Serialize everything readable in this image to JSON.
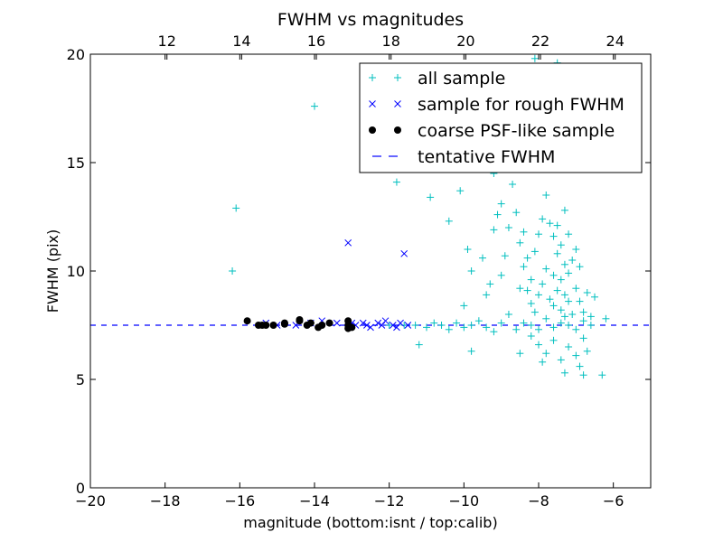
{
  "chart_data": {
    "type": "scatter",
    "title": "FWHM vs magnitudes",
    "xlabel": "magnitude (bottom:isnt / top:calib)",
    "ylabel": "FWHM (pix)",
    "xlim": [
      -20,
      -5
    ],
    "ylim": [
      0,
      20
    ],
    "x_ticks": [
      "−20",
      "−18",
      "−16",
      "−14",
      "−12",
      "−10",
      "−8",
      "−6"
    ],
    "x_tick_values": [
      -20,
      -18,
      -16,
      -14,
      -12,
      -10,
      -8,
      -6
    ],
    "y_ticks": [
      "0",
      "5",
      "10",
      "15",
      "20"
    ],
    "y_tick_values": [
      0,
      5,
      10,
      15,
      20
    ],
    "top_axis": {
      "offset": 29.95,
      "ticks": [
        "12",
        "14",
        "16",
        "18",
        "20",
        "22",
        "24"
      ],
      "tick_values": [
        12,
        14,
        16,
        18,
        20,
        22,
        24
      ]
    },
    "legend_position": "upper right",
    "hline": {
      "name": "tentative FWHM",
      "y": 7.5,
      "color": "#0000ff",
      "style": "dashed"
    },
    "series": [
      {
        "name": "all sample",
        "marker": "plus",
        "color": "#00bfbf",
        "points": [
          [
            -16.2,
            10.0
          ],
          [
            -16.1,
            12.9
          ],
          [
            -14.0,
            17.6
          ],
          [
            -11.8,
            14.1
          ],
          [
            -11.5,
            15.6
          ],
          [
            -10.9,
            13.4
          ],
          [
            -10.4,
            12.3
          ],
          [
            -10.1,
            13.7
          ],
          [
            -9.9,
            11.0
          ],
          [
            -9.8,
            10.0
          ],
          [
            -10.0,
            8.4
          ],
          [
            -11.2,
            6.6
          ],
          [
            -9.8,
            6.3
          ],
          [
            -12.0,
            7.5
          ],
          [
            -11.6,
            7.5
          ],
          [
            -11.3,
            7.5
          ],
          [
            -11.0,
            7.4
          ],
          [
            -10.8,
            7.6
          ],
          [
            -10.6,
            7.5
          ],
          [
            -10.4,
            7.3
          ],
          [
            -10.2,
            7.6
          ],
          [
            -10.0,
            7.4
          ],
          [
            -9.8,
            7.5
          ],
          [
            -9.6,
            7.7
          ],
          [
            -9.4,
            7.4
          ],
          [
            -9.2,
            7.2
          ],
          [
            -9.0,
            7.6
          ],
          [
            -8.8,
            8.0
          ],
          [
            -8.6,
            7.3
          ],
          [
            -8.4,
            7.6
          ],
          [
            -8.2,
            7.5
          ],
          [
            -8.0,
            7.3
          ],
          [
            -7.8,
            7.8
          ],
          [
            -7.6,
            7.4
          ],
          [
            -7.4,
            7.6
          ],
          [
            -7.2,
            7.5
          ],
          [
            -7.0,
            7.3
          ],
          [
            -6.8,
            7.7
          ],
          [
            -6.6,
            7.5
          ],
          [
            -6.2,
            7.8
          ],
          [
            -9.5,
            10.6
          ],
          [
            -9.3,
            9.4
          ],
          [
            -9.2,
            11.9
          ],
          [
            -9.1,
            12.6
          ],
          [
            -9.0,
            13.1
          ],
          [
            -9.4,
            8.9
          ],
          [
            -9.0,
            9.8
          ],
          [
            -8.9,
            10.7
          ],
          [
            -8.8,
            12.0
          ],
          [
            -8.7,
            14.0
          ],
          [
            -8.6,
            12.7
          ],
          [
            -8.5,
            11.3
          ],
          [
            -8.4,
            10.2
          ],
          [
            -8.3,
            9.1
          ],
          [
            -8.2,
            8.5
          ],
          [
            -8.1,
            10.9
          ],
          [
            -8.0,
            11.7
          ],
          [
            -7.9,
            12.4
          ],
          [
            -7.8,
            13.5
          ],
          [
            -7.7,
            12.2
          ],
          [
            -7.6,
            11.6
          ],
          [
            -7.5,
            10.8
          ],
          [
            -7.4,
            9.6
          ],
          [
            -7.3,
            8.9
          ],
          [
            -7.2,
            9.9
          ],
          [
            -7.1,
            10.5
          ],
          [
            -7.0,
            9.2
          ],
          [
            -6.9,
            8.6
          ],
          [
            -6.8,
            8.1
          ],
          [
            -6.7,
            9.0
          ],
          [
            -6.6,
            7.9
          ],
          [
            -6.5,
            8.8
          ],
          [
            -7.3,
            12.8
          ],
          [
            -7.4,
            11.2
          ],
          [
            -7.5,
            12.1
          ],
          [
            -7.6,
            9.8
          ],
          [
            -7.7,
            8.7
          ],
          [
            -7.8,
            10.1
          ],
          [
            -7.9,
            9.4
          ],
          [
            -8.0,
            8.9
          ],
          [
            -8.1,
            8.1
          ],
          [
            -8.2,
            9.6
          ],
          [
            -8.3,
            10.6
          ],
          [
            -8.4,
            11.8
          ],
          [
            -8.5,
            9.2
          ],
          [
            -7.2,
            11.7
          ],
          [
            -7.3,
            10.3
          ],
          [
            -7.4,
            8.2
          ],
          [
            -7.5,
            9.1
          ],
          [
            -7.6,
            8.4
          ],
          [
            -7.1,
            8.0
          ],
          [
            -7.0,
            11.0
          ],
          [
            -6.9,
            10.2
          ],
          [
            -7.2,
            8.6
          ],
          [
            -7.3,
            7.9
          ],
          [
            -8.6,
            15.0
          ],
          [
            -8.1,
            19.8
          ],
          [
            -7.9,
            16.6
          ],
          [
            -7.5,
            19.6
          ],
          [
            -7.4,
            17.8
          ],
          [
            -8.8,
            15.5
          ],
          [
            -8.4,
            17.0
          ],
          [
            -7.7,
            15.8
          ],
          [
            -7.2,
            16.8
          ],
          [
            -9.2,
            14.5
          ],
          [
            -8.2,
            7.0
          ],
          [
            -8.0,
            6.6
          ],
          [
            -7.8,
            6.2
          ],
          [
            -7.6,
            6.8
          ],
          [
            -7.4,
            5.9
          ],
          [
            -7.2,
            6.5
          ],
          [
            -7.0,
            6.1
          ],
          [
            -6.9,
            5.6
          ],
          [
            -6.8,
            6.9
          ],
          [
            -6.7,
            6.3
          ],
          [
            -7.3,
            5.3
          ],
          [
            -6.8,
            5.2
          ],
          [
            -6.3,
            5.2
          ],
          [
            -8.5,
            6.2
          ],
          [
            -7.9,
            5.8
          ]
        ]
      },
      {
        "name": "sample for rough FWHM",
        "marker": "x",
        "color": "#0000ff",
        "points": [
          [
            -13.1,
            11.3
          ],
          [
            -11.6,
            10.8
          ],
          [
            -13.8,
            7.7
          ],
          [
            -13.4,
            7.6
          ],
          [
            -12.9,
            7.5
          ],
          [
            -12.7,
            7.6
          ],
          [
            -12.5,
            7.4
          ],
          [
            -12.3,
            7.6
          ],
          [
            -12.1,
            7.7
          ],
          [
            -11.9,
            7.5
          ],
          [
            -11.7,
            7.6
          ],
          [
            -11.5,
            7.5
          ],
          [
            -11.8,
            7.4
          ],
          [
            -12.2,
            7.5
          ],
          [
            -13.0,
            7.6
          ],
          [
            -14.1,
            7.6
          ],
          [
            -14.5,
            7.5
          ],
          [
            -15.3,
            7.6
          ],
          [
            -15.0,
            7.5
          ],
          [
            -12.6,
            7.5
          ]
        ]
      },
      {
        "name": "coarse PSF-like sample",
        "marker": "dot",
        "color": "#000000",
        "points": [
          [
            -15.8,
            7.7
          ],
          [
            -15.5,
            7.5
          ],
          [
            -15.4,
            7.5
          ],
          [
            -15.3,
            7.5
          ],
          [
            -15.1,
            7.5
          ],
          [
            -14.8,
            7.6
          ],
          [
            -14.8,
            7.55
          ],
          [
            -14.4,
            7.7
          ],
          [
            -14.2,
            7.5
          ],
          [
            -14.1,
            7.6
          ],
          [
            -13.9,
            7.4
          ],
          [
            -13.8,
            7.5
          ],
          [
            -13.6,
            7.6
          ],
          [
            -13.1,
            7.7
          ],
          [
            -13.1,
            7.5
          ],
          [
            -13.0,
            7.4
          ],
          [
            -13.1,
            7.35
          ],
          [
            -14.4,
            7.75
          ]
        ]
      }
    ]
  }
}
